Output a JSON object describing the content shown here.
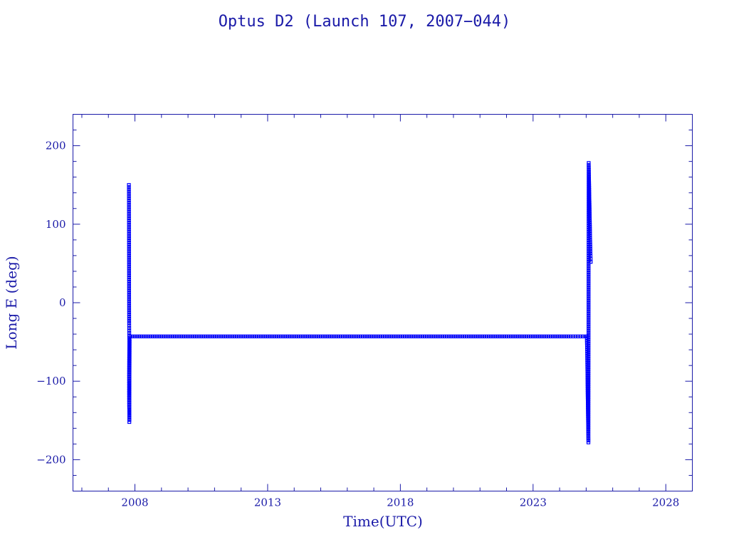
{
  "chart_data": {
    "type": "scatter",
    "title": "Optus D2 (Launch 107, 2007−044)",
    "xlabel": "Time(UTC)",
    "ylabel": "Long E (deg)",
    "xlim": [
      "2005-09-01",
      "2029-01-01"
    ],
    "ylim": [
      -240,
      240
    ],
    "xticks": [
      "2008",
      "2013",
      "2018",
      "2023",
      "2028"
    ],
    "yticks": [
      200,
      100,
      0,
      -100,
      -200
    ],
    "ytick_labels": [
      "200",
      "100",
      "0",
      "−100",
      "−200"
    ],
    "grid": false,
    "legend": "none",
    "color": "#0000ff",
    "series": [
      {
        "points": [
          [
            "2007-10-10",
            150
          ],
          [
            "2007-10-12",
            85
          ],
          [
            "2007-10-14",
            -26
          ],
          [
            "2007-10-15",
            -45
          ],
          [
            "2007-10-16",
            -48
          ],
          [
            "2007-10-14",
            -74
          ],
          [
            "2007-10-13",
            -94
          ],
          [
            "2007-10-13",
            -115
          ],
          [
            "2007-10-14",
            -133
          ],
          [
            "2007-10-15",
            -137
          ],
          [
            "2007-10-16",
            -152
          ],
          [
            "2007-10-20",
            -47
          ],
          [
            "2007-11-01",
            -43
          ],
          [
            "2008-06-01",
            -43
          ],
          [
            "2009-06-01",
            -43
          ],
          [
            "2010-06-01",
            -43
          ],
          [
            "2011-06-01",
            -43
          ],
          [
            "2012-06-01",
            -43
          ],
          [
            "2013-06-01",
            -43
          ],
          [
            "2014-06-01",
            -43
          ],
          [
            "2015-06-01",
            -43
          ],
          [
            "2016-06-01",
            -43
          ],
          [
            "2017-06-01",
            -43
          ],
          [
            "2018-06-01",
            -43
          ],
          [
            "2019-06-01",
            -43
          ],
          [
            "2020-06-01",
            -43
          ],
          [
            "2021-06-01",
            -43
          ],
          [
            "2022-06-01",
            -43
          ],
          [
            "2023-06-01",
            -43
          ],
          [
            "2024-06-01",
            -43
          ],
          [
            "2024-12-20",
            -43
          ],
          [
            "2025-01-10",
            -43
          ],
          [
            "2025-01-15",
            -65
          ],
          [
            "2025-01-18",
            -90
          ],
          [
            "2025-01-22",
            -120
          ],
          [
            "2025-01-27",
            -150
          ],
          [
            "2025-02-01",
            -178
          ],
          [
            "2025-02-05",
            178
          ],
          [
            "2025-02-10",
            155
          ],
          [
            "2025-02-15",
            130
          ],
          [
            "2025-02-20",
            105
          ],
          [
            "2025-02-25",
            80
          ],
          [
            "2025-03-02",
            60
          ],
          [
            "2025-03-05",
            52
          ]
        ]
      }
    ]
  }
}
